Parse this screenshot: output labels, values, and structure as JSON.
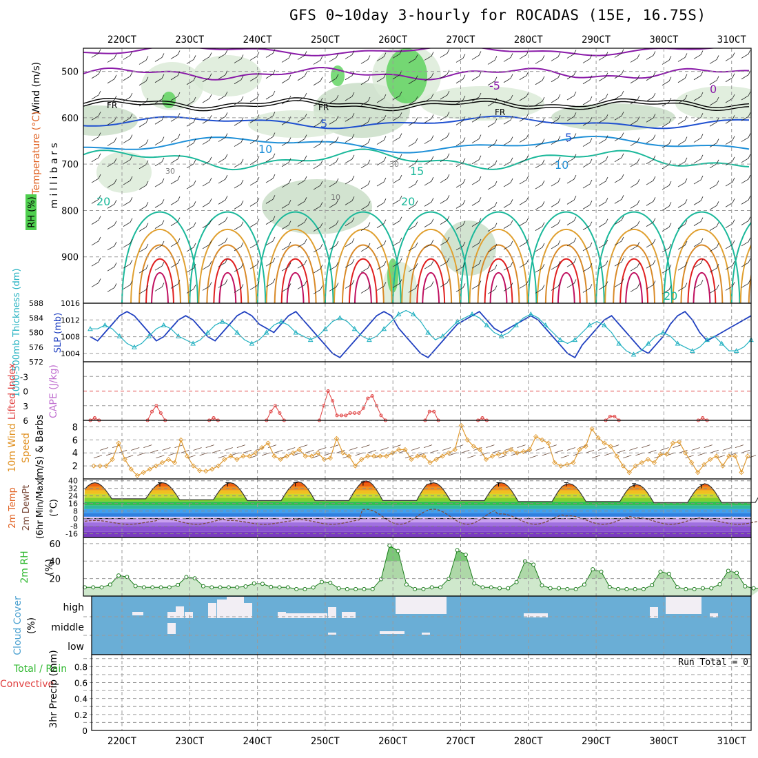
{
  "title": "GFS 0~10day 3-hourly for ROCADAS (15E, 16.75S)",
  "date_labels": [
    "22OCT",
    "23OCT",
    "24OCT",
    "25OCT",
    "26OCT",
    "27OCT",
    "28OCT",
    "29OCT",
    "30OCT",
    "31OCT"
  ],
  "colors": {
    "temp_cold": "#8a1aa8",
    "temp_blue": "#1e4fd0",
    "temp_lblue": "#1f90d8",
    "temp_teal": "#1ab89a",
    "temp_orange": "#e0a030",
    "temp_red": "#e02020",
    "rh_green": "#4fcf4f",
    "slp": "#2040c0",
    "thickness": "#20b0c0",
    "cape_li": "#e04040",
    "wind": "#e09a30",
    "cloud": "#6aaed6",
    "rh2m": "#2fb82f",
    "dewpt": "#7a4a3a"
  },
  "chart_data": [
    {
      "type": "heatmap",
      "name": "pressure-section",
      "ylabel": "millibars",
      "label_wind": "Wind (m/s)",
      "label_temp": "Temperature (°C)",
      "label_rh": "RH (%)",
      "yticks": [
        500,
        600,
        700,
        800,
        900
      ],
      "ylim": [
        1000,
        450
      ],
      "freezing_label": "FR",
      "contour_labels": [
        "-5",
        "0",
        "5",
        "5",
        "10",
        "10",
        "15",
        "20",
        "20",
        "20",
        "30",
        "10",
        "30"
      ]
    },
    {
      "type": "line",
      "name": "slp-thickness",
      "ylabel_left": "1000-500mb Thickness (dm)",
      "ylabel_right": "SLP (mb)",
      "left_ticks": [
        572,
        576,
        580,
        584,
        588
      ],
      "right_ticks": [
        1004,
        1008,
        1012,
        1016
      ],
      "slp": [
        1008,
        1007,
        1009,
        1011,
        1013,
        1014,
        1013,
        1011,
        1009,
        1007,
        1008,
        1010,
        1012,
        1013,
        1012,
        1010,
        1008,
        1007,
        1009,
        1011,
        1013,
        1014,
        1013,
        1011,
        1010,
        1009,
        1011,
        1013,
        1014,
        1012,
        1010,
        1008,
        1006,
        1004,
        1003,
        1005,
        1007,
        1009,
        1011,
        1013,
        1014,
        1013,
        1010,
        1008,
        1006,
        1004,
        1003,
        1005,
        1007,
        1009,
        1011,
        1012,
        1013,
        1014,
        1012,
        1010,
        1009,
        1010,
        1011,
        1012,
        1013,
        1012,
        1010,
        1008,
        1006,
        1004,
        1003,
        1006,
        1008,
        1010,
        1012,
        1013,
        1011,
        1009,
        1007,
        1005,
        1004,
        1006,
        1008,
        1011,
        1013,
        1014,
        1012,
        1009,
        1007,
        1008,
        1009,
        1010,
        1011,
        1012,
        1013
      ],
      "thickness": [
        581,
        581,
        582,
        581,
        579,
        577,
        576,
        577,
        579,
        581,
        582,
        581,
        579,
        578,
        577,
        578,
        580,
        582,
        583,
        582,
        580,
        578,
        577,
        578,
        580,
        582,
        583,
        582,
        580,
        579,
        578,
        579,
        581,
        583,
        584,
        583,
        581,
        579,
        578,
        579,
        581,
        583,
        585,
        586,
        585,
        583,
        580,
        578,
        579,
        581,
        583,
        584,
        585,
        584,
        582,
        580,
        579,
        580,
        582,
        584,
        585,
        584,
        582,
        580,
        578,
        577,
        578,
        580,
        582,
        583,
        582,
        580,
        577,
        575,
        574,
        575,
        577,
        579,
        580,
        579,
        577,
        576,
        575,
        576,
        578,
        579,
        577,
        575,
        575,
        576,
        578
      ]
    },
    {
      "type": "line",
      "name": "cape-lifted-index",
      "ylabel_left": "Lifted Index",
      "ylabel_right": "CAPE (J/kg)",
      "yticks": [
        -3,
        0,
        3,
        6
      ],
      "ylim": [
        -6,
        6
      ],
      "li_segments": [
        {
          "start": 0,
          "values": [
            6,
            5.5,
            6
          ]
        },
        {
          "start": 13,
          "values": [
            6,
            4.2,
            3,
            4.5,
            6
          ]
        },
        {
          "start": 27,
          "values": [
            6,
            5.5,
            6
          ]
        },
        {
          "start": 40,
          "values": [
            6,
            4.2,
            3,
            4.5,
            6
          ]
        },
        {
          "start": 52,
          "values": [
            6,
            3,
            0,
            2,
            5,
            5,
            5,
            4.5,
            4.5,
            4.5,
            3.5,
            1.5,
            1,
            3,
            5,
            6
          ]
        },
        {
          "start": 76,
          "values": [
            6,
            4.2,
            4.2,
            6
          ]
        },
        {
          "start": 88,
          "values": [
            6,
            5.5,
            6
          ]
        },
        {
          "start": 117,
          "values": [
            6,
            5.2,
            5.2,
            6
          ]
        },
        {
          "start": 138,
          "values": [
            6,
            5.5,
            6
          ]
        }
      ]
    },
    {
      "type": "line",
      "name": "wind-10m",
      "ylabel": "10m Wind Speed (m/s) & Barbs",
      "yticks": [
        2,
        4,
        6,
        8
      ],
      "ylim": [
        0,
        9
      ],
      "values": [
        2,
        2,
        2,
        3,
        5.5,
        3,
        1.5,
        0.5,
        1,
        1.5,
        2,
        2.5,
        3,
        2.5,
        6,
        3.5,
        2,
        1.3,
        1.2,
        1.5,
        2,
        3,
        3.5,
        3,
        3.5,
        3.5,
        4,
        4.8,
        5.5,
        3.5,
        3,
        3.5,
        4,
        4.5,
        3.5,
        3.5,
        4,
        3,
        3.2,
        6.2,
        4,
        3.5,
        2,
        3,
        3.5,
        3.5,
        3.5,
        3.5,
        4,
        4.5,
        4.5,
        3,
        3.5,
        3.5,
        2.5,
        3,
        3.5,
        4,
        4.5,
        8.2,
        6,
        5,
        4.5,
        3,
        3.5,
        3.8,
        4,
        4.5,
        4,
        4.2,
        4.5,
        6.5,
        6,
        5.5,
        2.5,
        2,
        2.2,
        2.5,
        4.5,
        5,
        7.7,
        6.3,
        5.5,
        5,
        3.5,
        2,
        1,
        2,
        2.5,
        3,
        2.5,
        3.8,
        3.8,
        5.5,
        5.7,
        4,
        2.5,
        1,
        2.2,
        3,
        3.5,
        2,
        3.5,
        3.5,
        1,
        3.5
      ]
    },
    {
      "type": "area",
      "name": "temp-2m",
      "ylabel": "2m Temp / 2m DewPt (6hr Min/Max) (°C)",
      "yticks": [
        40,
        32,
        24,
        16,
        8,
        0,
        -8,
        -16
      ],
      "ylim": [
        -20,
        42
      ],
      "max_temps": [
        38,
        38,
        38,
        39,
        40,
        38,
        38,
        37,
        36,
        37
      ],
      "min_temps": [
        20,
        19,
        18,
        18,
        18,
        18,
        17,
        17,
        16,
        16
      ],
      "dewpt_peaks": [
        -2,
        0,
        -2,
        -1,
        10,
        10,
        5,
        3,
        1,
        -1
      ]
    },
    {
      "type": "area",
      "name": "rh-2m",
      "ylabel": "2m RH (%)",
      "yticks": [
        20,
        40,
        60
      ],
      "ylim": [
        0,
        67
      ],
      "peaks": [
        25,
        23,
        15,
        17,
        63,
        57,
        43,
        33,
        30,
        31
      ],
      "troughs": [
        10,
        10,
        10,
        8,
        8,
        10,
        9,
        8,
        8,
        9
      ]
    },
    {
      "type": "heatmap",
      "name": "cloud-cover",
      "ylabel": "Cloud Cover (%)",
      "levels": [
        "high",
        "middle",
        "low"
      ]
    },
    {
      "type": "bar",
      "name": "precip-3hr",
      "ylabel": "3hr Precip (mm)",
      "legend_total": "Total / Rain",
      "legend_conv": "Convective",
      "run_total": "Run Total = 0",
      "yticks": [
        0,
        0.2,
        0.4,
        0.6,
        0.8
      ],
      "ylim": [
        0,
        0.95
      ],
      "values": []
    }
  ]
}
